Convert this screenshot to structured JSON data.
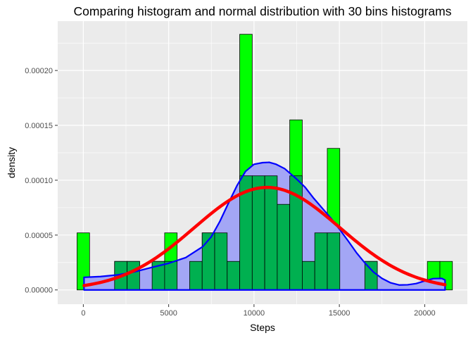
{
  "chart_data": {
    "type": "bar",
    "title": "Comparing histogram and normal distribution with 30 bins histograms",
    "xlabel": "Steps",
    "ylabel": "density",
    "xlim": [
      -1500,
      22500
    ],
    "ylim": [
      -1.3e-05,
      0.000245
    ],
    "x_ticks": [
      0,
      5000,
      10000,
      15000,
      20000
    ],
    "x_tick_labels": [
      "0",
      "5000",
      "10000",
      "15000",
      "20000"
    ],
    "y_ticks": [
      0,
      5e-05,
      0.0001,
      0.00015,
      0.0002
    ],
    "y_tick_labels": [
      "0.00000",
      "0.00005",
      "0.00010",
      "0.00015",
      "0.00020"
    ],
    "grid": true,
    "histogram": {
      "bin_width": 733,
      "bin_starts": [
        -367,
        366,
        1099,
        1832,
        2565,
        3298,
        4031,
        4764,
        5497,
        6230,
        6963,
        7696,
        8429,
        9162,
        9895,
        10628,
        11361,
        12094,
        12827,
        13560,
        14293,
        15026,
        15759,
        16492,
        17225,
        17958,
        18691,
        19424,
        20157,
        20890
      ],
      "outer_values": [
        5.2e-05,
        0,
        0,
        2.6e-05,
        2.6e-05,
        0,
        2.6e-05,
        5.2e-05,
        0,
        2.6e-05,
        5.2e-05,
        5.2e-05,
        2.6e-05,
        0.000233,
        0.000104,
        0.000104,
        7.8e-05,
        0.000155,
        2.6e-05,
        5.2e-05,
        0.000129,
        0,
        0,
        2.6e-05,
        0,
        0,
        0,
        0,
        2.6e-05,
        2.6e-05
      ],
      "inner_values": [
        0,
        0,
        0,
        2.6e-05,
        2.6e-05,
        0,
        2.6e-05,
        2.6e-05,
        0,
        2.6e-05,
        5.2e-05,
        5.2e-05,
        2.6e-05,
        0.000104,
        0.000104,
        0.000104,
        7.8e-05,
        0.000104,
        2.6e-05,
        5.2e-05,
        5.2e-05,
        0,
        0,
        2.6e-05,
        0,
        0,
        0,
        0,
        0,
        0
      ],
      "outer_fill": "#00ff00",
      "inner_fill": "#00b050",
      "bar_stroke": "#000000"
    },
    "density": {
      "x": [
        41,
        1000,
        2000,
        3000,
        4000,
        5000,
        6000,
        7000,
        7500,
        8000,
        8500,
        9000,
        9500,
        10000,
        10500,
        10900,
        11300,
        11800,
        12500,
        13000,
        13500,
        14000,
        14500,
        15000,
        15500,
        16000,
        16500,
        17000,
        17500,
        18000,
        18500,
        19000,
        19500,
        20000,
        20500,
        21000,
        21194
      ],
      "y": [
        1.15e-05,
        1.22e-05,
        1.37e-05,
        1.65e-05,
        2.05e-05,
        2.43e-05,
        2.95e-05,
        3.95e-05,
        4.85e-05,
        6.25e-05,
        7.9e-05,
        9.5e-05,
        0.000108,
        0.0001145,
        0.000116,
        0.0001163,
        0.0001145,
        0.0001105,
        0.000101,
        9.35e-05,
        8.35e-05,
        7.45e-05,
        6.55e-05,
        5.55e-05,
        4.5e-05,
        3.4e-05,
        2.45e-05,
        1.63e-05,
        1.05e-05,
        6.5e-06,
        4.5e-06,
        4.7e-06,
        5.8e-06,
        8.2e-06,
        1.03e-05,
        1.05e-05,
        9e-06
      ],
      "fill": "#a3a6f5",
      "stroke": "#0000ff"
    },
    "normal_curve": {
      "mean": 10766,
      "sd": 4269,
      "x_range": [
        41,
        21194
      ],
      "stroke": "#ff0000"
    }
  }
}
